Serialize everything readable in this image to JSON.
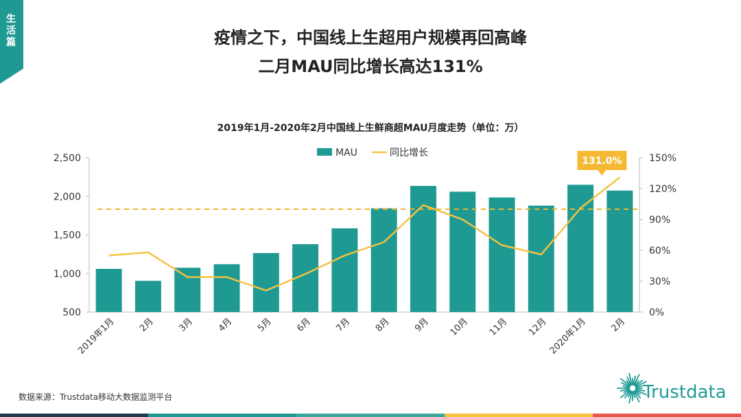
{
  "side_tab": {
    "label": "生活篇"
  },
  "header": {
    "title_line1": "疫情之下，中国线上生超用户规模再回高峰",
    "title_line2": "二月MAU同比增长高达131%"
  },
  "footer": {
    "source": "数据来源：Trustdata移动大数据监测平台",
    "logo_text": "Trustdata"
  },
  "colors": {
    "accent": "#1f9a93",
    "line": "#f5c242",
    "callout": "#f5b935",
    "bar_segments": [
      "#233a4f",
      "#1f9a93",
      "#3aa6a0",
      "#f5c242",
      "#e8574e"
    ]
  },
  "chart_data": {
    "type": "bar",
    "title": "2019年1月-2020年2月中国线上生鲜商超MAU月度走势（单位：万）",
    "categories": [
      "2019年1月",
      "2月",
      "3月",
      "4月",
      "5月",
      "6月",
      "7月",
      "8月",
      "9月",
      "10月",
      "11月",
      "12月",
      "2020年1月",
      "2月"
    ],
    "series": [
      {
        "name": "MAU",
        "type": "bar",
        "axis": "left",
        "values": [
          1060,
          905,
          1075,
          1120,
          1265,
          1380,
          1585,
          1845,
          2135,
          2060,
          1985,
          1880,
          2150,
          2075
        ]
      },
      {
        "name": "同比增长",
        "type": "line",
        "axis": "right",
        "values": [
          55,
          58,
          34,
          34,
          21,
          37,
          55,
          68,
          104,
          90,
          65,
          56,
          101,
          131
        ]
      }
    ],
    "reference_line": {
      "axis": "right",
      "value": 100,
      "style": "dashed"
    },
    "y_left": {
      "min": 500,
      "max": 2500,
      "ticks": [
        500,
        1000,
        1500,
        2000,
        2500
      ],
      "tick_labels": [
        "500",
        "1,000",
        "1,500",
        "2,000",
        "2,500"
      ]
    },
    "y_right": {
      "min": 0,
      "max": 150,
      "ticks": [
        0,
        30,
        60,
        90,
        120,
        150
      ],
      "tick_labels": [
        "0%",
        "30%",
        "60%",
        "90%",
        "120%",
        "150%"
      ]
    },
    "callout": {
      "label": "131.0%",
      "index": 13
    },
    "legend_placement": "top-center",
    "grid": false
  }
}
